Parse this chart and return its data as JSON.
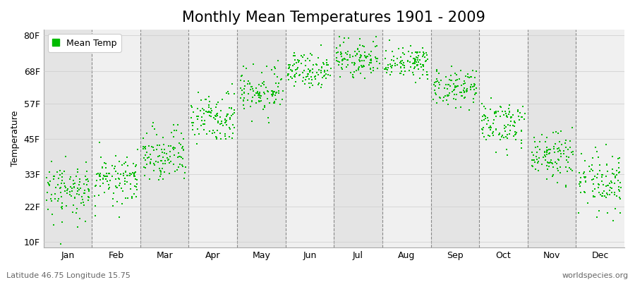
{
  "title": "Monthly Mean Temperatures 1901 - 2009",
  "ylabel": "Temperature",
  "subtitle_left": "Latitude 46.75 Longitude 15.75",
  "subtitle_right": "worldspecies.org",
  "legend_label": "Mean Temp",
  "dot_color": "#00BB00",
  "dot_size": 4,
  "months": [
    "Jan",
    "Feb",
    "Mar",
    "Apr",
    "May",
    "Jun",
    "Jul",
    "Aug",
    "Sep",
    "Oct",
    "Nov",
    "Dec"
  ],
  "ytick_values": [
    10,
    22,
    33,
    45,
    57,
    68,
    80
  ],
  "ytick_labels": [
    "10F",
    "22F",
    "33F",
    "45F",
    "57F",
    "68F",
    "80F"
  ],
  "ylim": [
    8,
    82
  ],
  "xlim": [
    0,
    12
  ],
  "background_color": "#ffffff",
  "plot_bg_color": "#efefef",
  "band_colors": [
    "#e4e4e4",
    "#f0f0f0"
  ],
  "title_fontsize": 15,
  "axis_fontsize": 9,
  "tick_fontsize": 9,
  "mean_monthly_F": [
    27,
    31,
    40,
    52,
    61,
    68,
    72,
    71,
    62,
    50,
    39,
    30
  ],
  "std_monthly_F": [
    5,
    5,
    5,
    4,
    4,
    3,
    3,
    3,
    3,
    4,
    4,
    5
  ],
  "n_years": 109,
  "rand_seed": 1234
}
